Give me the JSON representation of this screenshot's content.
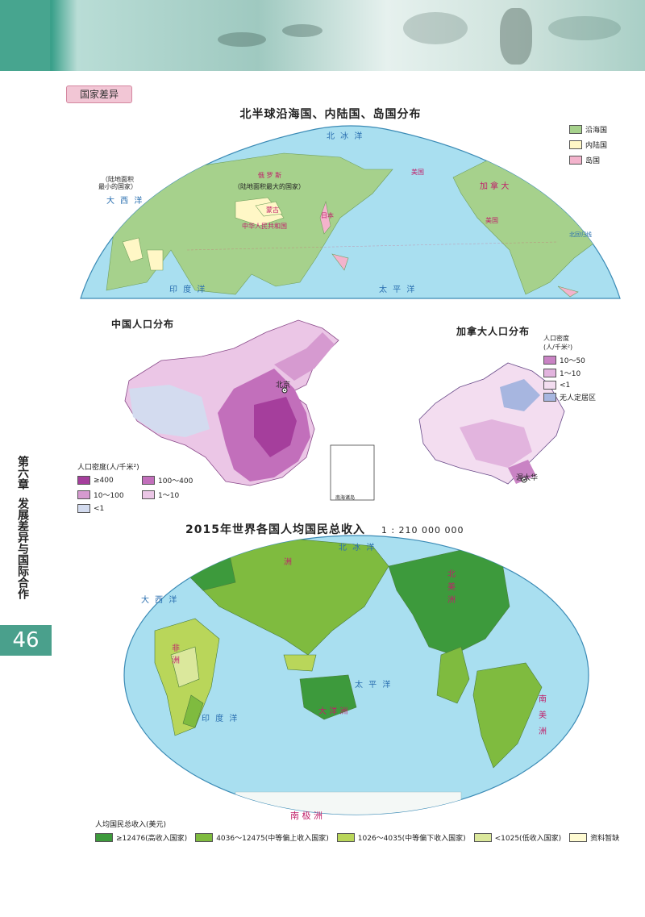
{
  "section_tag": "国家差异",
  "side": {
    "chapter": "第六章",
    "title": "发展差异与国际合作",
    "page": "46"
  },
  "map1": {
    "title": "北半球沿海国、内陆国、岛国分布",
    "legend": [
      {
        "label": "沿海国",
        "color": "#a6d18c"
      },
      {
        "label": "内陆国",
        "color": "#fff7c6"
      },
      {
        "label": "岛国",
        "color": "#f3b3cc"
      }
    ],
    "labels": {
      "smallest": "（陆地面积\n最小的国家）",
      "russia": "俄 罗 斯",
      "russia_note": "（陆地面积最大的国家）",
      "mongolia": "蒙古",
      "china": "中华人民共和国",
      "japan": "日本",
      "usa": "美国",
      "canada": "加 拿 大",
      "usa2": "美国"
    },
    "seas": {
      "arctic": "北 冰 洋",
      "atlantic": "大 西 洋",
      "indian": "印 度 洋",
      "pacific": "太 平 洋",
      "tropic": "北回归线"
    }
  },
  "map2": {
    "title": "中国人口分布",
    "legend_title": "人口密度(人/千米²)",
    "legend": [
      {
        "label": "≥400",
        "color": "#a53e9c"
      },
      {
        "label": "100～400",
        "color": "#c26fbb"
      },
      {
        "label": "10～100",
        "color": "#d69ad0"
      },
      {
        "label": "1～10",
        "color": "#ebc6e6"
      },
      {
        "label": "<1",
        "color": "#d3dbef"
      }
    ],
    "city": "北京",
    "inset": "南海诸岛"
  },
  "map3": {
    "title": "加拿大人口分布",
    "legend_title": "人口密度\n(人/千米²)",
    "legend": [
      {
        "label": "10～50",
        "color": "#c983c4"
      },
      {
        "label": "1～10",
        "color": "#e2b4de"
      },
      {
        "label": "<1",
        "color": "#f3ddf0"
      },
      {
        "label": "无人定居区",
        "color": "#a7b6e0"
      }
    ],
    "city": "渥太华"
  },
  "map4": {
    "title": "2015年世界各国人均国民总收入",
    "scale": "1 : 210 000 000",
    "legend_title": "人均国民总收入(美元)",
    "legend": [
      {
        "label": "≥12476(高收入国家)",
        "color": "#3d9a3c"
      },
      {
        "label": "4036～12475(中等偏上收入国家)",
        "color": "#7fbb3f"
      },
      {
        "label": "1026～4035(中等偏下收入国家)",
        "color": "#b9d65a"
      },
      {
        "label": "<1025(低收入国家)",
        "color": "#dbe89c"
      },
      {
        "label": "资料暂缺",
        "color": "#fffbd2"
      }
    ],
    "labels": {
      "asia": "洲",
      "africa1": "非",
      "africa2": "洲",
      "oceania": "大 洋 洲",
      "na1": "北",
      "na2": "美",
      "na3": "洲",
      "sa1": "南",
      "sa2": "美",
      "sa3": "洲",
      "ant": "南 极 洲"
    },
    "seas": {
      "arctic": "北 冰 洋",
      "atlantic": "大 西 洋",
      "indian": "印 度 洋",
      "pacific": "太 平 洋"
    }
  }
}
